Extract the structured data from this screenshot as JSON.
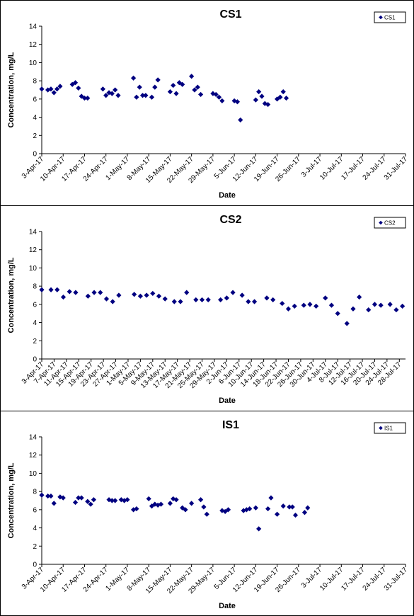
{
  "chart_data": [
    {
      "type": "scatter",
      "title": "CS1",
      "xlabel": "Date",
      "ylabel": "Concentration, mg/L",
      "ylim": [
        0,
        14
      ],
      "yticks": [
        0,
        2,
        4,
        6,
        8,
        10,
        12,
        14
      ],
      "xlim": [
        "2017-04-03",
        "2017-07-31"
      ],
      "xtick_dates": [
        "2017-04-03",
        "2017-04-10",
        "2017-04-17",
        "2017-04-24",
        "2017-05-01",
        "2017-05-08",
        "2017-05-15",
        "2017-05-22",
        "2017-05-29",
        "2017-06-05",
        "2017-06-12",
        "2017-06-19",
        "2017-06-26",
        "2017-07-03",
        "2017-07-10",
        "2017-07-17",
        "2017-07-24",
        "2017-07-31"
      ],
      "xtick_labels": [
        "3-Apr-17",
        "10-Apr-17",
        "17-Apr-17",
        "24-Apr-17",
        "1-May-17",
        "8-May-17",
        "15-May-17",
        "22-May-17",
        "29-May-17",
        "5-Jun-17",
        "12-Jun-17",
        "19-Jun-17",
        "26-Jun-17",
        "3-Jul-17",
        "10-Jul-17",
        "17-Jul-17",
        "24-Jul-17",
        "31-Jul-17"
      ],
      "grid": false,
      "legend": "top-right",
      "series": [
        {
          "name": "CS1",
          "color": "#000080",
          "marker": "diamond",
          "x": [
            "2017-04-03",
            "2017-04-05",
            "2017-04-06",
            "2017-04-07",
            "2017-04-08",
            "2017-04-09",
            "2017-04-13",
            "2017-04-14",
            "2017-04-15",
            "2017-04-16",
            "2017-04-17",
            "2017-04-18",
            "2017-04-23",
            "2017-04-24",
            "2017-04-25",
            "2017-04-26",
            "2017-04-27",
            "2017-04-28",
            "2017-05-03",
            "2017-05-04",
            "2017-05-05",
            "2017-05-06",
            "2017-05-07",
            "2017-05-09",
            "2017-05-10",
            "2017-05-11",
            "2017-05-15",
            "2017-05-16",
            "2017-05-17",
            "2017-05-18",
            "2017-05-19",
            "2017-05-22",
            "2017-05-23",
            "2017-05-24",
            "2017-05-25",
            "2017-05-29",
            "2017-05-30",
            "2017-05-31",
            "2017-06-01",
            "2017-06-05",
            "2017-06-06",
            "2017-06-07",
            "2017-06-12",
            "2017-06-13",
            "2017-06-14",
            "2017-06-15",
            "2017-06-16",
            "2017-06-19",
            "2017-06-20",
            "2017-06-21",
            "2017-06-22",
            "2017-06-26",
            "2017-06-27",
            "2017-06-28",
            "2017-06-29",
            "2017-07-03",
            "2017-07-04",
            "2017-07-05",
            "2017-07-06",
            "2017-07-10",
            "2017-07-11",
            "2017-07-12",
            "2017-07-13",
            "2017-07-14",
            "2017-07-17",
            "2017-07-18",
            "2017-07-19",
            "2017-07-24",
            "2017-07-25",
            "2017-07-26",
            "2017-07-27"
          ],
          "y": [
            7.1,
            7.0,
            7.1,
            6.7,
            7.1,
            7.4,
            7.6,
            7.8,
            7.2,
            6.3,
            6.1,
            6.1,
            7.1,
            6.4,
            6.7,
            6.6,
            7.0,
            6.4,
            8.3,
            6.2,
            7.3,
            6.4,
            6.4,
            6.2,
            7.3,
            8.1,
            6.8,
            7.5,
            6.6,
            7.8,
            7.6,
            8.5,
            7.0,
            7.3,
            6.5,
            6.6,
            6.5,
            6.2,
            5.8,
            5.8,
            5.7,
            3.7,
            5.9,
            6.8,
            6.3,
            5.5,
            5.4,
            6.0,
            6.2,
            6.8,
            6.1,
            null,
            null,
            null,
            null,
            null,
            null,
            null,
            null,
            null,
            null,
            null,
            null,
            null,
            null,
            null,
            null,
            null,
            null,
            null,
            null
          ]
        }
      ]
    },
    {
      "type": "scatter",
      "title": "CS2",
      "xlabel": "Date",
      "ylabel": "Concentration, mg/L",
      "ylim": [
        0,
        14
      ],
      "yticks": [
        0,
        2,
        4,
        6,
        8,
        10,
        12,
        14
      ],
      "xlim": [
        "2017-04-03",
        "2017-07-30"
      ],
      "xtick_dates": [
        "2017-04-03",
        "2017-04-07",
        "2017-04-11",
        "2017-04-15",
        "2017-04-19",
        "2017-04-23",
        "2017-04-27",
        "2017-05-01",
        "2017-05-05",
        "2017-05-09",
        "2017-05-13",
        "2017-05-17",
        "2017-05-21",
        "2017-05-25",
        "2017-05-29",
        "2017-06-02",
        "2017-06-06",
        "2017-06-10",
        "2017-06-14",
        "2017-06-18",
        "2017-06-22",
        "2017-06-26",
        "2017-06-30",
        "2017-07-04",
        "2017-07-08",
        "2017-07-12",
        "2017-07-16",
        "2017-07-20",
        "2017-07-24",
        "2017-07-28"
      ],
      "xtick_labels": [
        "3-Apr-17",
        "7-Apr-17",
        "11-Apr-17",
        "15-Apr-17",
        "19-Apr-17",
        "23-Apr-17",
        "27-Apr-17",
        "1-May-17",
        "5-May-17",
        "9-May-17",
        "13-May-17",
        "17-May-17",
        "21-May-17",
        "25-May-17",
        "29-May-17",
        "2-Jun-17",
        "6-Jun-17",
        "10-Jun-17",
        "14-Jun-17",
        "18-Jun-17",
        "22-Jun-17",
        "26-Jun-17",
        "30-Jun-17",
        "4-Jul-17",
        "8-Jul-17",
        "12-Jul-17",
        "16-Jul-17",
        "20-Jul-17",
        "24-Jul-17",
        "28-Jul-17"
      ],
      "grid": false,
      "legend": "top-right",
      "series": [
        {
          "name": "CS2",
          "color": "#000080",
          "marker": "diamond",
          "x": [
            "2017-04-03",
            "2017-04-06",
            "2017-04-08",
            "2017-04-10",
            "2017-04-12",
            "2017-04-14",
            "2017-04-18",
            "2017-04-20",
            "2017-04-22",
            "2017-04-24",
            "2017-04-26",
            "2017-04-28",
            "2017-05-03",
            "2017-05-05",
            "2017-05-07",
            "2017-05-09",
            "2017-05-11",
            "2017-05-13",
            "2017-05-16",
            "2017-05-18",
            "2017-05-20",
            "2017-05-23",
            "2017-05-25",
            "2017-05-27",
            "2017-05-31",
            "2017-06-02",
            "2017-06-04",
            "2017-06-07",
            "2017-06-09",
            "2017-06-11",
            "2017-06-15",
            "2017-06-17",
            "2017-06-20",
            "2017-06-22",
            "2017-06-24",
            "2017-06-27",
            "2017-06-29",
            "2017-07-01",
            "2017-07-04",
            "2017-07-06",
            "2017-07-08",
            "2017-07-11",
            "2017-07-13",
            "2017-07-15",
            "2017-07-18",
            "2017-07-20",
            "2017-07-22",
            "2017-07-25",
            "2017-07-27",
            "2017-07-29"
          ],
          "y": [
            7.6,
            7.6,
            7.6,
            6.8,
            7.4,
            7.3,
            6.9,
            7.3,
            7.3,
            6.6,
            6.3,
            7.0,
            7.1,
            6.9,
            7.0,
            7.2,
            6.9,
            6.6,
            6.3,
            6.3,
            7.3,
            6.5,
            6.5,
            6.5,
            6.5,
            6.7,
            7.3,
            7.0,
            6.3,
            6.3,
            6.7,
            6.5,
            6.1,
            5.5,
            5.8,
            5.9,
            6.0,
            5.8,
            6.7,
            5.9,
            5.0,
            3.9,
            5.5,
            6.8,
            5.4,
            6.0,
            5.9,
            6.0,
            5.4,
            5.8
          ]
        }
      ]
    },
    {
      "type": "scatter",
      "title": "IS1",
      "xlabel": "Date",
      "ylabel": "Concentration, mg/L",
      "ylim": [
        0,
        14
      ],
      "yticks": [
        0,
        2,
        4,
        6,
        8,
        10,
        12,
        14
      ],
      "xlim": [
        "2017-04-03",
        "2017-07-31"
      ],
      "xtick_dates": [
        "2017-04-03",
        "2017-04-10",
        "2017-04-17",
        "2017-04-24",
        "2017-05-01",
        "2017-05-08",
        "2017-05-15",
        "2017-05-22",
        "2017-05-29",
        "2017-06-05",
        "2017-06-12",
        "2017-06-19",
        "2017-06-26",
        "2017-07-03",
        "2017-07-10",
        "2017-07-17",
        "2017-07-24",
        "2017-07-31"
      ],
      "xtick_labels": [
        "3-Apr-17",
        "10-Apr-17",
        "17-Apr-17",
        "24-Apr-17",
        "1-May-17",
        "8-May-17",
        "15-May-17",
        "22-May-17",
        "29-May-17",
        "5-Jun-17",
        "12-Jun-17",
        "19-Jun-17",
        "26-Jun-17",
        "3-Jul-17",
        "10-Jul-17",
        "17-Jul-17",
        "24-Jul-17",
        "31-Jul-17"
      ],
      "grid": false,
      "legend": "top-right",
      "series": [
        {
          "name": "IS1",
          "color": "#000080",
          "marker": "diamond",
          "x": [
            "2017-04-03",
            "2017-04-05",
            "2017-04-06",
            "2017-04-07",
            "2017-04-09",
            "2017-04-10",
            "2017-04-14",
            "2017-04-15",
            "2017-04-16",
            "2017-04-18",
            "2017-04-19",
            "2017-04-20",
            "2017-04-25",
            "2017-04-26",
            "2017-04-27",
            "2017-04-29",
            "2017-04-30",
            "2017-05-01",
            "2017-05-03",
            "2017-05-04",
            "2017-05-08",
            "2017-05-09",
            "2017-05-10",
            "2017-05-11",
            "2017-05-12",
            "2017-05-15",
            "2017-05-16",
            "2017-05-17",
            "2017-05-19",
            "2017-05-20",
            "2017-05-22",
            "2017-05-25",
            "2017-05-26",
            "2017-05-27",
            "2017-06-01",
            "2017-06-02",
            "2017-06-03",
            "2017-06-08",
            "2017-06-09",
            "2017-06-10",
            "2017-06-12",
            "2017-06-13",
            "2017-06-16",
            "2017-06-17",
            "2017-06-19",
            "2017-06-21",
            "2017-06-23",
            "2017-06-24",
            "2017-06-25",
            "2017-06-28",
            "2017-06-29",
            "2017-06-30",
            "2017-07-03",
            "2017-07-04",
            "2017-07-05",
            "2017-07-07",
            "2017-07-08",
            "2017-07-10",
            "2017-07-11",
            "2017-07-13",
            "2017-07-14",
            "2017-07-17",
            "2017-07-18",
            "2017-07-19",
            "2017-07-20",
            "2017-07-21",
            "2017-07-24",
            "2017-07-26",
            "2017-07-28",
            "2017-07-30",
            "2017-07-31"
          ],
          "y": [
            7.6,
            7.5,
            7.5,
            6.7,
            7.4,
            7.3,
            6.8,
            7.3,
            7.3,
            6.9,
            6.6,
            7.1,
            7.1,
            7.0,
            7.0,
            7.1,
            7.0,
            7.1,
            6.0,
            6.1,
            7.2,
            6.4,
            6.6,
            6.5,
            6.6,
            6.7,
            7.2,
            7.1,
            6.2,
            6.0,
            6.7,
            7.1,
            6.3,
            5.5,
            5.9,
            5.8,
            6.0,
            5.9,
            6.0,
            6.1,
            6.2,
            3.9,
            6.1,
            7.3,
            5.5,
            6.4,
            6.3,
            6.3,
            5.4,
            5.7,
            6.2,
            null,
            null,
            null,
            null,
            null,
            null,
            null,
            null,
            null,
            null,
            null,
            null,
            null,
            null,
            null,
            null,
            null,
            null,
            null,
            null
          ]
        }
      ]
    }
  ]
}
